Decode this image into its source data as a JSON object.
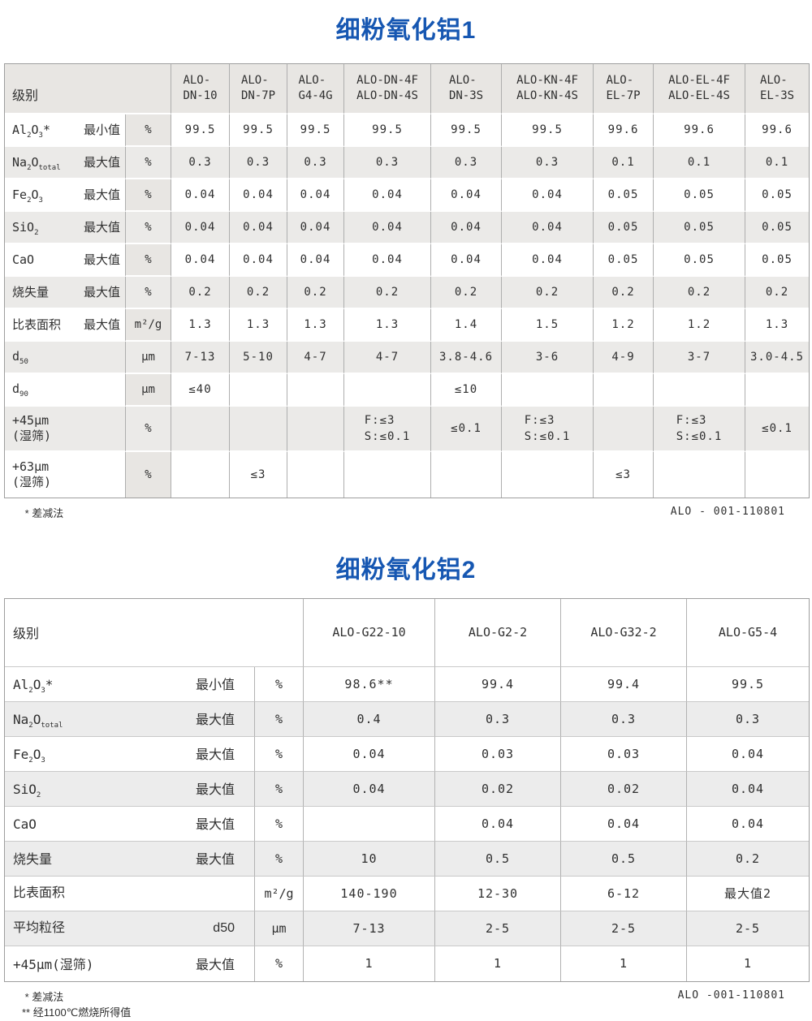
{
  "colors": {
    "title_blue": "#1657b2",
    "stripe_gray": "#ebeae8",
    "header_gray": "#e8e6e3"
  },
  "tables": [
    {
      "title": "细粉氧化铝1",
      "level_label": "级别",
      "columns": [
        "ALO-\nDN-10",
        "ALO-\nDN-7P",
        "ALO-\nG4-4G",
        "ALO-DN-4F\nALO-DN-4S",
        "ALO-\nDN-3S",
        "ALO-KN-4F\nALO-KN-4S",
        "ALO-\nEL-7P",
        "ALO-EL-4F\nALO-EL-4S",
        "ALO-\nEL-3S"
      ],
      "rows": [
        {
          "param": "Al|2|O|3|*",
          "criterion": "最小值",
          "unit": "%",
          "values": [
            "99.5",
            "99.5",
            "99.5",
            "99.5",
            "99.5",
            "99.5",
            "99.6",
            "99.6",
            "99.6"
          ]
        },
        {
          "param": "Na|2|O|total|",
          "criterion": "最大值",
          "unit": "%",
          "values": [
            "0.3",
            "0.3",
            "0.3",
            "0.3",
            "0.3",
            "0.3",
            "0.1",
            "0.1",
            "0.1"
          ]
        },
        {
          "param": "Fe|2|O|3|",
          "criterion": "最大值",
          "unit": "%",
          "values": [
            "0.04",
            "0.04",
            "0.04",
            "0.04",
            "0.04",
            "0.04",
            "0.05",
            "0.05",
            "0.05"
          ]
        },
        {
          "param": "SiO|2|",
          "criterion": "最大值",
          "unit": "%",
          "values": [
            "0.04",
            "0.04",
            "0.04",
            "0.04",
            "0.04",
            "0.04",
            "0.05",
            "0.05",
            "0.05"
          ]
        },
        {
          "param": "CaO",
          "criterion": "最大值",
          "unit": "%",
          "values": [
            "0.04",
            "0.04",
            "0.04",
            "0.04",
            "0.04",
            "0.04",
            "0.05",
            "0.05",
            "0.05"
          ]
        },
        {
          "param": "烧失量",
          "criterion": "最大值",
          "unit": "%",
          "values": [
            "0.2",
            "0.2",
            "0.2",
            "0.2",
            "0.2",
            "0.2",
            "0.2",
            "0.2",
            "0.2"
          ]
        },
        {
          "param": "比表面积",
          "criterion": "最大值",
          "unit": "m²/g",
          "values": [
            "1.3",
            "1.3",
            "1.3",
            "1.3",
            "1.4",
            "1.5",
            "1.2",
            "1.2",
            "1.3"
          ]
        },
        {
          "param": "d|50|",
          "criterion": "",
          "unit": "μm",
          "values": [
            "7-13",
            "5-10",
            "4-7",
            "4-7",
            "3.8-4.6",
            "3-6",
            "4-9",
            "3-7",
            "3.0-4.5"
          ]
        },
        {
          "param": "d|90|",
          "criterion": "",
          "unit": "μm",
          "values": [
            "≤40",
            "",
            "",
            "",
            "≤10",
            "",
            "",
            "",
            ""
          ]
        },
        {
          "param": "+45μm\n(湿筛)",
          "criterion": "",
          "unit": "%",
          "values": [
            "",
            "",
            "",
            "F:≤3\nS:≤0.1",
            "≤0.1",
            "F:≤3\nS:≤0.1",
            "",
            "F:≤3\nS:≤0.1",
            "≤0.1"
          ]
        },
        {
          "param": "+63μm\n(湿筛)",
          "criterion": "",
          "unit": "%",
          "values": [
            "",
            "≤3",
            "",
            "",
            "",
            "",
            "≤3",
            "",
            ""
          ]
        }
      ],
      "footnotes": [
        " * 差减法"
      ],
      "doc_code": "ALO - 001-110801"
    },
    {
      "title": "细粉氧化铝2",
      "level_label": "级别",
      "columns": [
        "ALO-G22-10",
        "ALO-G2-2",
        "ALO-G32-2",
        "ALO-G5-4"
      ],
      "rows": [
        {
          "param": "Al|2|O|3|*",
          "criterion": "最小值",
          "unit": "%",
          "values": [
            "98.6**",
            "99.4",
            "99.4",
            "99.5"
          ]
        },
        {
          "param": "Na|2|O|total|",
          "criterion": "最大值",
          "unit": "%",
          "values": [
            "0.4",
            "0.3",
            "0.3",
            "0.3"
          ]
        },
        {
          "param": "Fe|2|O|3|",
          "criterion": "最大值",
          "unit": "%",
          "values": [
            "0.04",
            "0.03",
            "0.03",
            "0.04"
          ]
        },
        {
          "param": "SiO|2|",
          "criterion": "最大值",
          "unit": "%",
          "values": [
            "0.04",
            "0.02",
            "0.02",
            "0.04"
          ]
        },
        {
          "param": "CaO",
          "criterion": "最大值",
          "unit": "%",
          "values": [
            "",
            "0.04",
            "0.04",
            "0.04"
          ]
        },
        {
          "param": "烧失量",
          "criterion": "最大值",
          "unit": "%",
          "values": [
            "10",
            "0.5",
            "0.5",
            "0.2"
          ]
        },
        {
          "param": "比表面积",
          "criterion": "",
          "unit": "m²/g",
          "values": [
            "140-190",
            "12-30",
            "6-12",
            "最大值2"
          ]
        },
        {
          "param": "平均粒径",
          "criterion": "d50",
          "unit": "μm",
          "values": [
            "7-13",
            "2-5",
            "2-5",
            "2-5"
          ]
        },
        {
          "param": "+45μm(湿筛)",
          "criterion": "最大值",
          "unit": "%",
          "values": [
            "1",
            "1",
            "1",
            "1"
          ]
        }
      ],
      "footnotes": [
        " * 差减法",
        "** 经1100℃燃烧所得值"
      ],
      "doc_code": "ALO -001-110801"
    }
  ]
}
